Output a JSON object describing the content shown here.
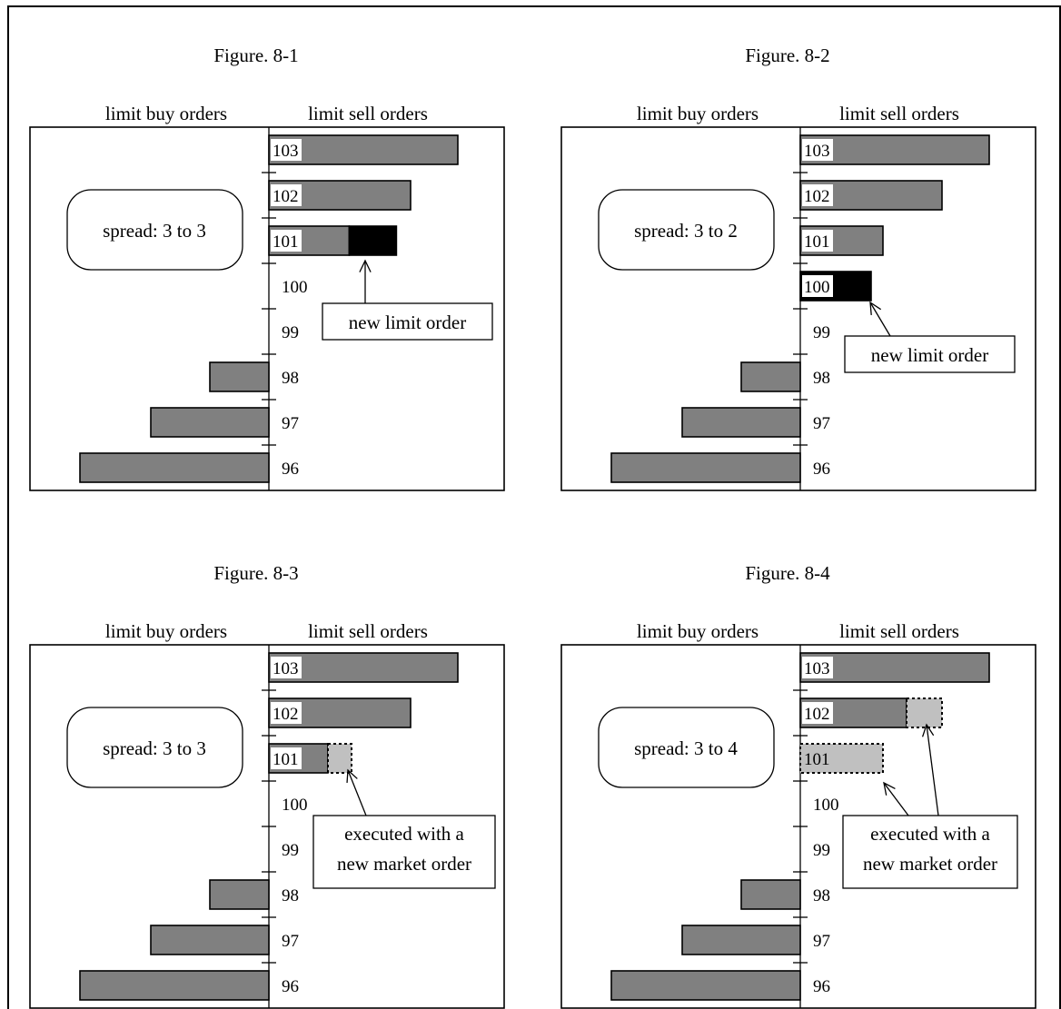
{
  "colors": {
    "resting": "#808080",
    "new_limit": "#000000",
    "executed": "#c0c0c0",
    "background": "#ffffff"
  },
  "panels": [
    {
      "caption": "Figure. 8-1",
      "buy_header": "limit buy orders",
      "sell_header": "limit sell orders",
      "spread_label": "spread: 3 to 3",
      "note_lines": [
        "new limit order"
      ],
      "price_labels": [
        "103",
        "102",
        "101",
        "100",
        "99",
        "98",
        "97",
        "96"
      ],
      "sell_orders": [
        {
          "price": "103",
          "label": "103",
          "resting": 4,
          "new_limit": 0,
          "executed": 0
        },
        {
          "price": "102",
          "label": "102",
          "resting": 3,
          "new_limit": 0,
          "executed": 0
        },
        {
          "price": "101",
          "label": "101",
          "resting": 1.7,
          "new_limit": 1,
          "executed": 0
        }
      ],
      "buy_orders": [
        {
          "price": "98",
          "resting": 1.25
        },
        {
          "price": "97",
          "resting": 2.5
        },
        {
          "price": "96",
          "resting": 4
        }
      ]
    },
    {
      "caption": "Figure. 8-2",
      "buy_header": "limit buy orders",
      "sell_header": "limit sell orders",
      "spread_label": "spread: 3 to 2",
      "note_lines": [
        "new limit order"
      ],
      "price_labels": [
        "103",
        "102",
        "101",
        "100",
        "99",
        "98",
        "97",
        "96"
      ],
      "sell_orders": [
        {
          "price": "103",
          "label": "103",
          "resting": 4,
          "new_limit": 0,
          "executed": 0
        },
        {
          "price": "102",
          "label": "102",
          "resting": 3,
          "new_limit": 0,
          "executed": 0
        },
        {
          "price": "101",
          "label": "101",
          "resting": 1.75,
          "new_limit": 0,
          "executed": 0
        },
        {
          "price": "100",
          "label": "100",
          "resting": 0,
          "new_limit": 1.5,
          "executed": 0
        }
      ],
      "buy_orders": [
        {
          "price": "98",
          "resting": 1.25
        },
        {
          "price": "97",
          "resting": 2.5
        },
        {
          "price": "96",
          "resting": 4
        }
      ]
    },
    {
      "caption": "Figure. 8-3",
      "buy_header": "limit buy orders",
      "sell_header": "limit sell orders",
      "spread_label": "spread: 3 to 3",
      "note_lines": [
        "executed with a",
        "new market order"
      ],
      "price_labels": [
        "103",
        "102",
        "101",
        "100",
        "99",
        "98",
        "97",
        "96"
      ],
      "sell_orders": [
        {
          "price": "103",
          "label": "103",
          "resting": 4,
          "new_limit": 0,
          "executed": 0
        },
        {
          "price": "102",
          "label": "102",
          "resting": 3,
          "new_limit": 0,
          "executed": 0
        },
        {
          "price": "101",
          "label": "101",
          "resting": 1.25,
          "new_limit": 0,
          "executed": 0.5
        }
      ],
      "buy_orders": [
        {
          "price": "98",
          "resting": 1.25
        },
        {
          "price": "97",
          "resting": 2.5
        },
        {
          "price": "96",
          "resting": 4
        }
      ]
    },
    {
      "caption": "Figure. 8-4",
      "buy_header": "limit buy orders",
      "sell_header": "limit sell orders",
      "spread_label": "spread: 3 to 4",
      "note_lines": [
        "executed with a",
        "new market order"
      ],
      "price_labels": [
        "103",
        "102",
        "101",
        "100",
        "99",
        "98",
        "97",
        "96"
      ],
      "sell_orders": [
        {
          "price": "103",
          "label": "103",
          "resting": 4,
          "new_limit": 0,
          "executed": 0
        },
        {
          "price": "102",
          "label": "102",
          "resting": 2.25,
          "new_limit": 0,
          "executed": 0.75
        },
        {
          "price": "101",
          "label": "101",
          "resting": 0,
          "new_limit": 0,
          "executed": 1.75
        }
      ],
      "buy_orders": [
        {
          "price": "98",
          "resting": 1.25
        },
        {
          "price": "97",
          "resting": 2.5
        },
        {
          "price": "96",
          "resting": 4
        }
      ]
    }
  ]
}
